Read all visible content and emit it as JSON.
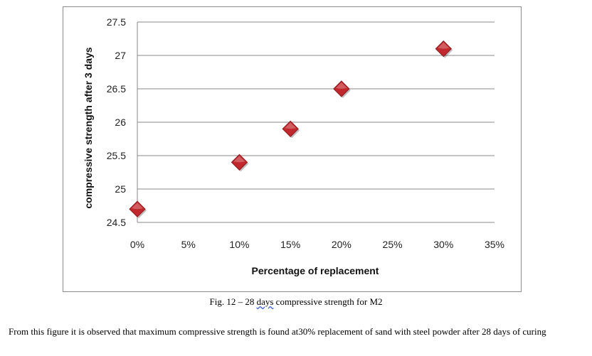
{
  "chart_data": {
    "type": "scatter",
    "title": "",
    "xlabel": "Percentage of replacement",
    "ylabel": "compressive strength after 3 days",
    "x_tick_labels": [
      "0%",
      "5%",
      "10%",
      "15%",
      "20%",
      "25%",
      "30%",
      "35%"
    ],
    "y_tick_labels": [
      "24.5",
      "25",
      "25.5",
      "26",
      "26.5",
      "27",
      "27.5"
    ],
    "xlim": [
      0,
      35
    ],
    "ylim": [
      24.5,
      27.5
    ],
    "grid": "horizontal",
    "legend": "none",
    "marker": "diamond",
    "marker_color": "#c0282d",
    "points": [
      {
        "x": 0,
        "y": 24.7
      },
      {
        "x": 10,
        "y": 25.4
      },
      {
        "x": 15,
        "y": 25.9
      },
      {
        "x": 20,
        "y": 26.5
      },
      {
        "x": 30,
        "y": 27.1
      }
    ]
  },
  "caption": {
    "prefix": "Fig. 12 – 28 ",
    "flagged_word": "days",
    "suffix": " compressive strength for M2"
  },
  "paragraph": "From this figure it is observed that maximum compressive strength is found at30% replacement of sand with steel powder after 28 days of curing"
}
